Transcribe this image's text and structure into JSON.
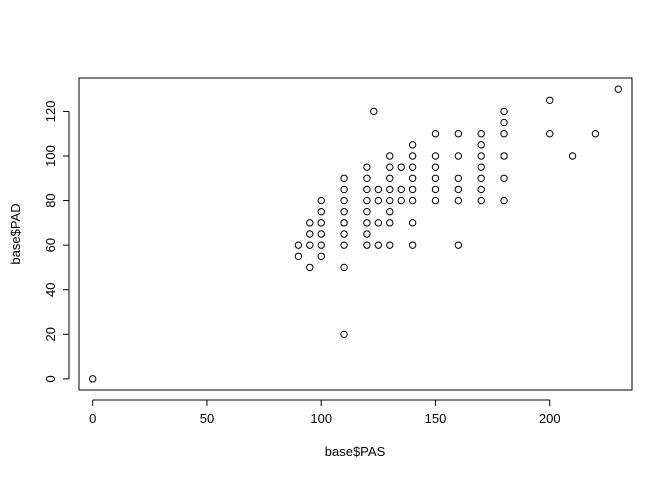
{
  "chart_data": {
    "type": "scatter",
    "title": "",
    "xlabel": "base$PAS",
    "ylabel": "base$PAD",
    "xlim": [
      -6,
      236
    ],
    "ylim": [
      -5,
      135
    ],
    "x_ticks": [
      0,
      50,
      100,
      150,
      200
    ],
    "y_ticks": [
      0,
      20,
      40,
      60,
      80,
      100,
      120
    ],
    "grid": false,
    "marker": "open-circle",
    "points": [
      {
        "x": 0,
        "y": 0
      },
      {
        "x": 90,
        "y": 55
      },
      {
        "x": 90,
        "y": 60
      },
      {
        "x": 95,
        "y": 50
      },
      {
        "x": 95,
        "y": 60
      },
      {
        "x": 95,
        "y": 65
      },
      {
        "x": 95,
        "y": 70
      },
      {
        "x": 100,
        "y": 55
      },
      {
        "x": 100,
        "y": 60
      },
      {
        "x": 100,
        "y": 65
      },
      {
        "x": 100,
        "y": 70
      },
      {
        "x": 100,
        "y": 75
      },
      {
        "x": 100,
        "y": 80
      },
      {
        "x": 110,
        "y": 20
      },
      {
        "x": 110,
        "y": 50
      },
      {
        "x": 110,
        "y": 60
      },
      {
        "x": 110,
        "y": 65
      },
      {
        "x": 110,
        "y": 70
      },
      {
        "x": 110,
        "y": 75
      },
      {
        "x": 110,
        "y": 80
      },
      {
        "x": 110,
        "y": 85
      },
      {
        "x": 110,
        "y": 90
      },
      {
        "x": 120,
        "y": 60
      },
      {
        "x": 120,
        "y": 65
      },
      {
        "x": 120,
        "y": 70
      },
      {
        "x": 120,
        "y": 75
      },
      {
        "x": 120,
        "y": 80
      },
      {
        "x": 120,
        "y": 85
      },
      {
        "x": 120,
        "y": 90
      },
      {
        "x": 120,
        "y": 95
      },
      {
        "x": 123,
        "y": 120
      },
      {
        "x": 125,
        "y": 60
      },
      {
        "x": 125,
        "y": 70
      },
      {
        "x": 125,
        "y": 80
      },
      {
        "x": 125,
        "y": 85
      },
      {
        "x": 130,
        "y": 60
      },
      {
        "x": 130,
        "y": 70
      },
      {
        "x": 130,
        "y": 75
      },
      {
        "x": 130,
        "y": 80
      },
      {
        "x": 130,
        "y": 85
      },
      {
        "x": 130,
        "y": 90
      },
      {
        "x": 130,
        "y": 95
      },
      {
        "x": 130,
        "y": 100
      },
      {
        "x": 135,
        "y": 80
      },
      {
        "x": 135,
        "y": 85
      },
      {
        "x": 135,
        "y": 95
      },
      {
        "x": 140,
        "y": 60
      },
      {
        "x": 140,
        "y": 70
      },
      {
        "x": 140,
        "y": 80
      },
      {
        "x": 140,
        "y": 85
      },
      {
        "x": 140,
        "y": 90
      },
      {
        "x": 140,
        "y": 95
      },
      {
        "x": 140,
        "y": 100
      },
      {
        "x": 140,
        "y": 105
      },
      {
        "x": 150,
        "y": 80
      },
      {
        "x": 150,
        "y": 85
      },
      {
        "x": 150,
        "y": 90
      },
      {
        "x": 150,
        "y": 95
      },
      {
        "x": 150,
        "y": 100
      },
      {
        "x": 150,
        "y": 110
      },
      {
        "x": 160,
        "y": 60
      },
      {
        "x": 160,
        "y": 80
      },
      {
        "x": 160,
        "y": 85
      },
      {
        "x": 160,
        "y": 90
      },
      {
        "x": 160,
        "y": 100
      },
      {
        "x": 160,
        "y": 110
      },
      {
        "x": 170,
        "y": 80
      },
      {
        "x": 170,
        "y": 85
      },
      {
        "x": 170,
        "y": 90
      },
      {
        "x": 170,
        "y": 95
      },
      {
        "x": 170,
        "y": 100
      },
      {
        "x": 170,
        "y": 105
      },
      {
        "x": 170,
        "y": 110
      },
      {
        "x": 180,
        "y": 80
      },
      {
        "x": 180,
        "y": 90
      },
      {
        "x": 180,
        "y": 100
      },
      {
        "x": 180,
        "y": 110
      },
      {
        "x": 180,
        "y": 115
      },
      {
        "x": 180,
        "y": 120
      },
      {
        "x": 200,
        "y": 110
      },
      {
        "x": 200,
        "y": 125
      },
      {
        "x": 210,
        "y": 100
      },
      {
        "x": 220,
        "y": 110
      },
      {
        "x": 230,
        "y": 130
      }
    ]
  }
}
